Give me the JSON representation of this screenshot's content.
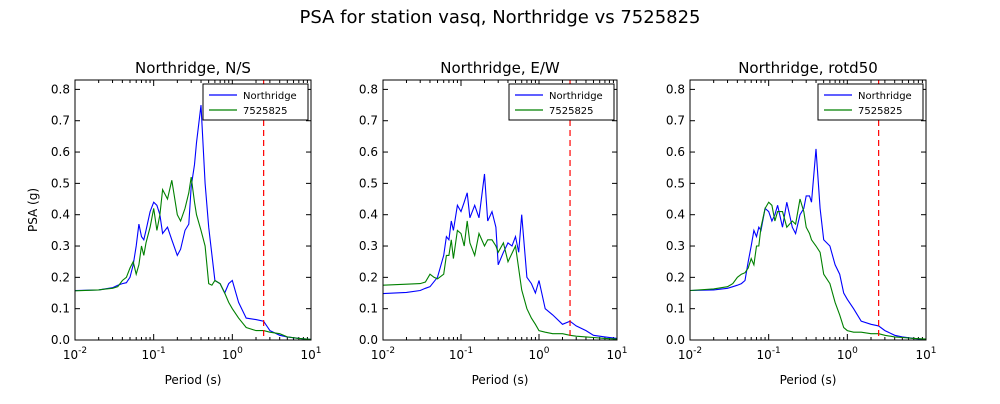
{
  "figure": {
    "suptitle": "PSA for station vasq, Northridge vs 7525825"
  },
  "chart_data": [
    {
      "type": "line",
      "title": "Northridge, N/S",
      "xlabel": "Period (s)",
      "ylabel": "PSA (g)",
      "xscale": "log",
      "xlim": [
        0.01,
        10
      ],
      "ylim": [
        0,
        0.83
      ],
      "xtick_labels": [
        "10^-2",
        "10^-1",
        "10^0",
        "10^1"
      ],
      "ytick_labels": [
        "0.0",
        "0.1",
        "0.2",
        "0.3",
        "0.4",
        "0.5",
        "0.6",
        "0.7",
        "0.8"
      ],
      "legend": "top-right",
      "vline": {
        "x": 2.5,
        "color": "#ff0000",
        "style": "dashed"
      },
      "series": [
        {
          "name": "Northridge",
          "color": "#0000ff",
          "x": [
            0.01,
            0.02,
            0.03,
            0.035,
            0.04,
            0.045,
            0.05,
            0.055,
            0.06,
            0.065,
            0.07,
            0.075,
            0.08,
            0.09,
            0.1,
            0.11,
            0.12,
            0.13,
            0.15,
            0.17,
            0.2,
            0.22,
            0.25,
            0.28,
            0.3,
            0.33,
            0.35,
            0.4,
            0.45,
            0.5,
            0.6,
            0.7,
            0.8,
            0.9,
            1.0,
            1.2,
            1.5,
            2.0,
            2.5,
            3.0,
            4.0,
            5.0,
            7.0,
            10.0
          ],
          "y": [
            0.158,
            0.16,
            0.167,
            0.175,
            0.18,
            0.183,
            0.2,
            0.24,
            0.3,
            0.37,
            0.33,
            0.32,
            0.35,
            0.41,
            0.44,
            0.43,
            0.4,
            0.34,
            0.36,
            0.32,
            0.27,
            0.29,
            0.35,
            0.37,
            0.49,
            0.56,
            0.63,
            0.75,
            0.5,
            0.36,
            0.19,
            0.18,
            0.15,
            0.18,
            0.19,
            0.12,
            0.07,
            0.065,
            0.06,
            0.03,
            0.015,
            0.01,
            0.005,
            0.002
          ]
        },
        {
          "name": "7525825",
          "color": "#008000",
          "x": [
            0.01,
            0.02,
            0.025,
            0.03,
            0.035,
            0.04,
            0.045,
            0.05,
            0.055,
            0.06,
            0.065,
            0.07,
            0.075,
            0.08,
            0.09,
            0.1,
            0.11,
            0.12,
            0.13,
            0.15,
            0.17,
            0.2,
            0.22,
            0.25,
            0.28,
            0.3,
            0.33,
            0.35,
            0.4,
            0.45,
            0.5,
            0.55,
            0.6,
            0.7,
            0.8,
            0.9,
            1.0,
            1.2,
            1.5,
            2.0,
            2.5,
            3.0,
            4.0,
            5.0,
            7.0,
            10.0
          ],
          "y": [
            0.157,
            0.16,
            0.163,
            0.165,
            0.17,
            0.19,
            0.2,
            0.23,
            0.25,
            0.21,
            0.24,
            0.3,
            0.27,
            0.31,
            0.36,
            0.42,
            0.35,
            0.4,
            0.48,
            0.45,
            0.51,
            0.4,
            0.38,
            0.42,
            0.47,
            0.52,
            0.44,
            0.4,
            0.35,
            0.3,
            0.18,
            0.175,
            0.19,
            0.18,
            0.15,
            0.12,
            0.1,
            0.07,
            0.04,
            0.03,
            0.03,
            0.025,
            0.02,
            0.01,
            0.005,
            0.002
          ]
        }
      ]
    },
    {
      "type": "line",
      "title": "Northridge, E/W",
      "xlabel": "Period (s)",
      "ylabel": "",
      "xscale": "log",
      "xlim": [
        0.01,
        10
      ],
      "ylim": [
        0,
        0.83
      ],
      "xtick_labels": [
        "10^-2",
        "10^-1",
        "10^0",
        "10^1"
      ],
      "ytick_labels": [
        "0.0",
        "0.1",
        "0.2",
        "0.3",
        "0.4",
        "0.5",
        "0.6",
        "0.7",
        "0.8"
      ],
      "legend": "top-right",
      "vline": {
        "x": 2.5,
        "color": "#ff0000",
        "style": "dashed"
      },
      "series": [
        {
          "name": "Northridge",
          "color": "#0000ff",
          "x": [
            0.01,
            0.02,
            0.03,
            0.035,
            0.04,
            0.05,
            0.06,
            0.065,
            0.07,
            0.075,
            0.08,
            0.09,
            0.1,
            0.11,
            0.12,
            0.13,
            0.15,
            0.17,
            0.2,
            0.22,
            0.25,
            0.28,
            0.3,
            0.35,
            0.4,
            0.45,
            0.5,
            0.55,
            0.6,
            0.7,
            0.8,
            0.9,
            1.0,
            1.2,
            1.5,
            2.0,
            2.5,
            3.0,
            4.0,
            5.0,
            7.0,
            10.0
          ],
          "y": [
            0.148,
            0.152,
            0.158,
            0.165,
            0.17,
            0.2,
            0.27,
            0.33,
            0.32,
            0.38,
            0.35,
            0.43,
            0.41,
            0.44,
            0.47,
            0.39,
            0.43,
            0.39,
            0.53,
            0.38,
            0.41,
            0.36,
            0.24,
            0.28,
            0.31,
            0.3,
            0.33,
            0.28,
            0.4,
            0.2,
            0.18,
            0.15,
            0.19,
            0.1,
            0.08,
            0.05,
            0.06,
            0.045,
            0.03,
            0.015,
            0.01,
            0.005
          ]
        },
        {
          "name": "7525825",
          "color": "#008000",
          "x": [
            0.01,
            0.02,
            0.03,
            0.035,
            0.04,
            0.045,
            0.05,
            0.06,
            0.065,
            0.07,
            0.075,
            0.08,
            0.09,
            0.1,
            0.11,
            0.12,
            0.13,
            0.15,
            0.17,
            0.2,
            0.22,
            0.25,
            0.28,
            0.3,
            0.35,
            0.4,
            0.5,
            0.6,
            0.7,
            0.8,
            0.9,
            1.0,
            1.2,
            1.5,
            2.0,
            2.5,
            3.0,
            4.0,
            5.0,
            7.0,
            10.0
          ],
          "y": [
            0.175,
            0.178,
            0.18,
            0.185,
            0.21,
            0.2,
            0.195,
            0.21,
            0.27,
            0.27,
            0.32,
            0.26,
            0.35,
            0.34,
            0.3,
            0.38,
            0.31,
            0.27,
            0.34,
            0.3,
            0.32,
            0.32,
            0.3,
            0.28,
            0.31,
            0.25,
            0.3,
            0.16,
            0.1,
            0.07,
            0.05,
            0.03,
            0.025,
            0.02,
            0.02,
            0.015,
            0.012,
            0.01,
            0.008,
            0.005,
            0.003
          ]
        }
      ]
    },
    {
      "type": "line",
      "title": "Northridge, rotd50",
      "xlabel": "Period (s)",
      "ylabel": "",
      "xscale": "log",
      "xlim": [
        0.01,
        10
      ],
      "ylim": [
        0,
        0.83
      ],
      "xtick_labels": [
        "10^-2",
        "10^-1",
        "10^0",
        "10^1"
      ],
      "ytick_labels": [
        "0.0",
        "0.1",
        "0.2",
        "0.3",
        "0.4",
        "0.5",
        "0.6",
        "0.7",
        "0.8"
      ],
      "legend": "top-right",
      "vline": {
        "x": 2.5,
        "color": "#ff0000",
        "style": "dashed"
      },
      "series": [
        {
          "name": "Northridge",
          "color": "#0000ff",
          "x": [
            0.01,
            0.02,
            0.03,
            0.035,
            0.04,
            0.045,
            0.05,
            0.055,
            0.06,
            0.065,
            0.07,
            0.075,
            0.08,
            0.09,
            0.1,
            0.11,
            0.12,
            0.13,
            0.15,
            0.17,
            0.2,
            0.22,
            0.25,
            0.28,
            0.3,
            0.33,
            0.35,
            0.4,
            0.45,
            0.5,
            0.6,
            0.7,
            0.8,
            0.9,
            1.0,
            1.2,
            1.5,
            2.0,
            2.5,
            3.0,
            4.0,
            5.0,
            7.0,
            10.0
          ],
          "y": [
            0.158,
            0.16,
            0.165,
            0.17,
            0.175,
            0.18,
            0.19,
            0.25,
            0.3,
            0.35,
            0.33,
            0.36,
            0.35,
            0.42,
            0.41,
            0.38,
            0.4,
            0.43,
            0.36,
            0.44,
            0.36,
            0.34,
            0.4,
            0.42,
            0.46,
            0.46,
            0.44,
            0.61,
            0.42,
            0.32,
            0.3,
            0.24,
            0.21,
            0.15,
            0.13,
            0.1,
            0.06,
            0.05,
            0.045,
            0.03,
            0.015,
            0.01,
            0.005,
            0.002
          ]
        },
        {
          "name": "7525825",
          "color": "#008000",
          "x": [
            0.01,
            0.02,
            0.03,
            0.035,
            0.04,
            0.045,
            0.05,
            0.055,
            0.06,
            0.065,
            0.07,
            0.075,
            0.08,
            0.09,
            0.1,
            0.11,
            0.12,
            0.13,
            0.15,
            0.17,
            0.2,
            0.22,
            0.25,
            0.28,
            0.3,
            0.33,
            0.35,
            0.4,
            0.45,
            0.5,
            0.6,
            0.7,
            0.8,
            0.9,
            1.0,
            1.2,
            1.5,
            2.0,
            2.5,
            3.0,
            4.0,
            5.0,
            7.0,
            10.0
          ],
          "y": [
            0.158,
            0.163,
            0.17,
            0.18,
            0.2,
            0.21,
            0.215,
            0.23,
            0.26,
            0.24,
            0.3,
            0.3,
            0.36,
            0.42,
            0.44,
            0.43,
            0.38,
            0.41,
            0.41,
            0.36,
            0.38,
            0.37,
            0.45,
            0.41,
            0.36,
            0.34,
            0.32,
            0.3,
            0.28,
            0.21,
            0.18,
            0.12,
            0.08,
            0.04,
            0.03,
            0.025,
            0.025,
            0.02,
            0.02,
            0.015,
            0.01,
            0.008,
            0.005,
            0.003
          ]
        }
      ]
    }
  ]
}
